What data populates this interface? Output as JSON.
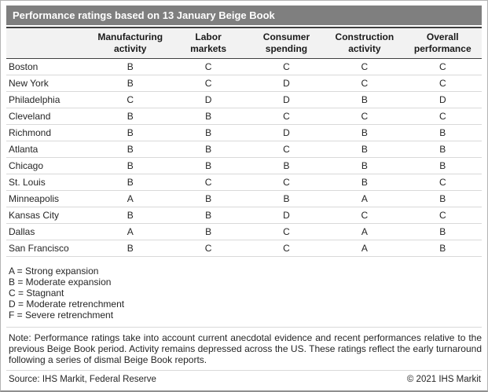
{
  "title": "Performance ratings based on 13 January Beige Book",
  "table": {
    "columns": [
      "Manufacturing\nactivity",
      "Labor\nmarkets",
      "Consumer\nspending",
      "Construction\nactivity",
      "Overall\nperformance"
    ],
    "rows": [
      {
        "district": "Boston",
        "grades": [
          "B",
          "C",
          "C",
          "C",
          "C"
        ]
      },
      {
        "district": "New York",
        "grades": [
          "B",
          "C",
          "D",
          "C",
          "C"
        ]
      },
      {
        "district": "Philadelphia",
        "grades": [
          "C",
          "D",
          "D",
          "B",
          "D"
        ]
      },
      {
        "district": "Cleveland",
        "grades": [
          "B",
          "B",
          "C",
          "C",
          "C"
        ]
      },
      {
        "district": "Richmond",
        "grades": [
          "B",
          "B",
          "D",
          "B",
          "B"
        ]
      },
      {
        "district": "Atlanta",
        "grades": [
          "B",
          "B",
          "C",
          "B",
          "B"
        ]
      },
      {
        "district": "Chicago",
        "grades": [
          "B",
          "B",
          "B",
          "B",
          "B"
        ]
      },
      {
        "district": "St. Louis",
        "grades": [
          "B",
          "C",
          "C",
          "B",
          "C"
        ]
      },
      {
        "district": "Minneapolis",
        "grades": [
          "A",
          "B",
          "B",
          "A",
          "B"
        ]
      },
      {
        "district": "Kansas City",
        "grades": [
          "B",
          "B",
          "D",
          "C",
          "C"
        ]
      },
      {
        "district": "Dallas",
        "grades": [
          "A",
          "B",
          "C",
          "A",
          "B"
        ]
      },
      {
        "district": "San Francisco",
        "grades": [
          "B",
          "C",
          "C",
          "A",
          "B"
        ]
      }
    ]
  },
  "legend": [
    "A = Strong expansion",
    "B = Moderate expansion",
    "C = Stagnant",
    "D = Moderate retrenchment",
    "F = Severe retrenchment"
  ],
  "note": "Note: Performance ratings take into account current anecdotal evidence and recent performances relative to the previous Beige Book period. Activity remains depressed across the US. These ratings reflect the early turnaround following a series of dismal Beige Book reports.",
  "source": "Source: IHS Markit, Federal Reserve",
  "copyright": "© 2021 IHS Markit",
  "colors": {
    "title_bar": "#7f7f7f",
    "header_bg": "#f2f2f2",
    "dark_border": "#3f3f3f",
    "row_border": "#d9d9d9",
    "frame_border": "#b3b3b3"
  },
  "chart_data": {
    "type": "table",
    "title": "Performance ratings based on 13 January Beige Book",
    "columns": [
      "Manufacturing activity",
      "Labor markets",
      "Consumer spending",
      "Construction activity",
      "Overall performance"
    ],
    "rows": [
      {
        "label": "Boston",
        "values": [
          "B",
          "C",
          "C",
          "C",
          "C"
        ]
      },
      {
        "label": "New York",
        "values": [
          "B",
          "C",
          "D",
          "C",
          "C"
        ]
      },
      {
        "label": "Philadelphia",
        "values": [
          "C",
          "D",
          "D",
          "B",
          "D"
        ]
      },
      {
        "label": "Cleveland",
        "values": [
          "B",
          "B",
          "C",
          "C",
          "C"
        ]
      },
      {
        "label": "Richmond",
        "values": [
          "B",
          "B",
          "D",
          "B",
          "B"
        ]
      },
      {
        "label": "Atlanta",
        "values": [
          "B",
          "B",
          "C",
          "B",
          "B"
        ]
      },
      {
        "label": "Chicago",
        "values": [
          "B",
          "B",
          "B",
          "B",
          "B"
        ]
      },
      {
        "label": "St. Louis",
        "values": [
          "B",
          "C",
          "C",
          "B",
          "C"
        ]
      },
      {
        "label": "Minneapolis",
        "values": [
          "A",
          "B",
          "B",
          "A",
          "B"
        ]
      },
      {
        "label": "Kansas City",
        "values": [
          "B",
          "B",
          "D",
          "C",
          "C"
        ]
      },
      {
        "label": "Dallas",
        "values": [
          "A",
          "B",
          "C",
          "A",
          "B"
        ]
      },
      {
        "label": "San Francisco",
        "values": [
          "B",
          "C",
          "C",
          "A",
          "B"
        ]
      }
    ],
    "rating_scale": {
      "A": "Strong expansion",
      "B": "Moderate expansion",
      "C": "Stagnant",
      "D": "Moderate retrenchment",
      "F": "Severe retrenchment"
    }
  }
}
